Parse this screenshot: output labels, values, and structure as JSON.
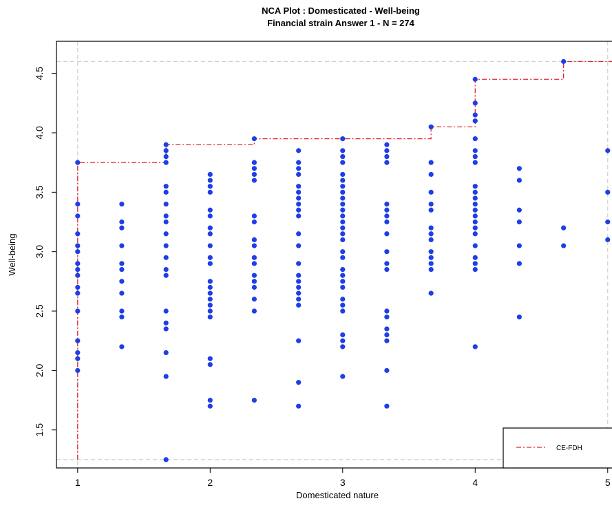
{
  "chart_data": {
    "type": "scatter",
    "title": "NCA Plot : Domesticated - Well-being",
    "subtitle": "Financial strain Answer 1 - N = 274",
    "xlabel": "Domesticated nature",
    "ylabel": "Well-being",
    "xlim": [
      0.84,
      5.1
    ],
    "ylim": [
      1.18,
      4.77
    ],
    "x_ticks": [
      {
        "value": 1,
        "label": "1"
      },
      {
        "value": 2,
        "label": "2"
      },
      {
        "value": 3,
        "label": "3"
      },
      {
        "value": 4,
        "label": "4"
      },
      {
        "value": 5,
        "label": "5"
      }
    ],
    "y_ticks": [
      {
        "value": 1.5,
        "label": "1.5"
      },
      {
        "value": 2.0,
        "label": "2.0"
      },
      {
        "value": 2.5,
        "label": "2.5"
      },
      {
        "value": 3.0,
        "label": "3.0"
      },
      {
        "value": 3.5,
        "label": "3.5"
      },
      {
        "value": 4.0,
        "label": "4.0"
      },
      {
        "value": 4.5,
        "label": "4.5"
      }
    ],
    "grid_guides": {
      "x": [
        1,
        5
      ],
      "y": [
        1.25,
        4.6
      ]
    },
    "point_color": "#1f3fe6",
    "columns": [
      {
        "x": 1.0,
        "y": [
          3.75,
          3.4,
          3.3,
          3.15,
          3.05,
          3.0,
          2.9,
          2.85,
          2.8,
          2.7,
          2.65,
          2.5,
          2.25,
          2.15,
          2.1,
          2.0
        ]
      },
      {
        "x": 1.333,
        "y": [
          3.4,
          3.25,
          3.2,
          3.05,
          2.9,
          2.85,
          2.75,
          2.65,
          2.5,
          2.45,
          2.2
        ]
      },
      {
        "x": 1.667,
        "y": [
          3.9,
          3.85,
          3.8,
          3.75,
          3.55,
          3.5,
          3.4,
          3.3,
          3.25,
          3.15,
          3.05,
          2.95,
          2.85,
          2.8,
          2.5,
          2.4,
          2.35,
          2.15,
          1.95,
          1.25
        ]
      },
      {
        "x": 2.0,
        "y": [
          3.65,
          3.6,
          3.55,
          3.5,
          3.35,
          3.3,
          3.2,
          3.15,
          3.05,
          2.95,
          2.9,
          2.75,
          2.7,
          2.65,
          2.6,
          2.55,
          2.5,
          2.45,
          2.1,
          2.05,
          1.75,
          1.7
        ]
      },
      {
        "x": 2.333,
        "y": [
          3.95,
          3.75,
          3.7,
          3.65,
          3.6,
          3.3,
          3.25,
          3.1,
          3.05,
          2.95,
          2.9,
          2.8,
          2.75,
          2.7,
          2.6,
          2.5,
          1.75
        ]
      },
      {
        "x": 2.667,
        "y": [
          3.85,
          3.75,
          3.7,
          3.65,
          3.55,
          3.5,
          3.45,
          3.4,
          3.35,
          3.3,
          3.15,
          3.05,
          2.9,
          2.8,
          2.75,
          2.7,
          2.65,
          2.6,
          2.55,
          2.25,
          1.9,
          1.7
        ]
      },
      {
        "x": 3.0,
        "y": [
          3.95,
          3.85,
          3.8,
          3.75,
          3.65,
          3.6,
          3.55,
          3.5,
          3.45,
          3.4,
          3.35,
          3.3,
          3.25,
          3.2,
          3.15,
          3.1,
          3.0,
          2.95,
          2.85,
          2.8,
          2.75,
          2.7,
          2.6,
          2.55,
          2.5,
          2.3,
          2.25,
          2.2,
          1.95
        ]
      },
      {
        "x": 3.333,
        "y": [
          3.9,
          3.85,
          3.8,
          3.75,
          3.4,
          3.35,
          3.3,
          3.25,
          3.15,
          3.0,
          2.9,
          2.85,
          2.5,
          2.45,
          2.35,
          2.3,
          2.25,
          2.0,
          1.7
        ]
      },
      {
        "x": 3.667,
        "y": [
          4.05,
          3.75,
          3.65,
          3.5,
          3.4,
          3.35,
          3.2,
          3.15,
          3.1,
          3.0,
          2.95,
          2.9,
          2.85,
          2.65
        ]
      },
      {
        "x": 4.0,
        "y": [
          4.45,
          4.25,
          4.15,
          4.1,
          3.95,
          3.85,
          3.8,
          3.75,
          3.55,
          3.5,
          3.45,
          3.4,
          3.35,
          3.3,
          3.25,
          3.2,
          3.15,
          3.05,
          2.95,
          2.9,
          2.85,
          2.2
        ]
      },
      {
        "x": 4.333,
        "y": [
          3.7,
          3.6,
          3.35,
          3.25,
          3.05,
          2.9,
          2.45
        ]
      },
      {
        "x": 4.667,
        "y": [
          4.6,
          3.2,
          3.05
        ]
      },
      {
        "x": 5.0,
        "y": [
          3.85,
          3.5,
          3.25,
          3.1
        ]
      }
    ],
    "ceiling": {
      "name": "CE-FDH",
      "color": "#e3242b",
      "points": [
        [
          1.0,
          1.25
        ],
        [
          1.0,
          3.75
        ],
        [
          1.667,
          3.75
        ],
        [
          1.667,
          3.9
        ],
        [
          2.333,
          3.9
        ],
        [
          2.333,
          3.95
        ],
        [
          3.667,
          3.95
        ],
        [
          3.667,
          4.05
        ],
        [
          4.0,
          4.05
        ],
        [
          4.0,
          4.45
        ],
        [
          4.667,
          4.45
        ],
        [
          4.667,
          4.6
        ],
        [
          5.1,
          4.6
        ]
      ]
    },
    "legend": {
      "position": "bottom-right",
      "entries": [
        "CE-FDH"
      ]
    }
  }
}
